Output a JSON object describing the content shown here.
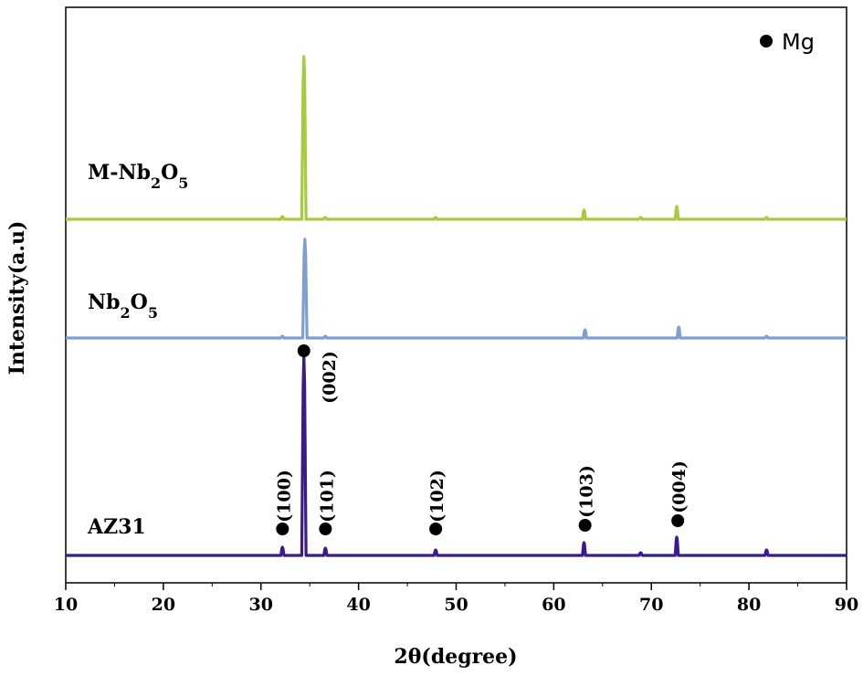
{
  "chart_data": {
    "type": "line",
    "xlabel": "2θ(degree)",
    "ylabel": "Intensity(a.u)",
    "xlim": [
      10,
      90
    ],
    "x_ticks": [
      "10",
      "20",
      "30",
      "40",
      "50",
      "60",
      "70",
      "80",
      "90"
    ],
    "legend": {
      "label": "Mg",
      "marker": "filled-circle",
      "position": "top-right"
    },
    "series": [
      {
        "name": "AZ31",
        "label_parts": [
          {
            "t": "AZ31",
            "sub": false
          }
        ],
        "color": "#3a1a8c",
        "offset": 0,
        "peaks": [
          {
            "x": 32.2,
            "h": 9
          },
          {
            "x": 34.4,
            "h": 218
          },
          {
            "x": 36.6,
            "h": 8
          },
          {
            "x": 47.9,
            "h": 6
          },
          {
            "x": 63.1,
            "h": 14
          },
          {
            "x": 68.9,
            "h": 3
          },
          {
            "x": 72.6,
            "h": 20
          },
          {
            "x": 81.8,
            "h": 6
          }
        ]
      },
      {
        "name": "Nb2O5",
        "label_parts": [
          {
            "t": "Nb",
            "sub": false
          },
          {
            "t": "2",
            "sub": true
          },
          {
            "t": "O",
            "sub": false
          },
          {
            "t": "5",
            "sub": true
          }
        ],
        "color": "#7f9fcf",
        "offset": 238,
        "peaks": [
          {
            "x": 32.2,
            "h": 2
          },
          {
            "x": 34.5,
            "h": 108
          },
          {
            "x": 36.6,
            "h": 2
          },
          {
            "x": 63.2,
            "h": 9
          },
          {
            "x": 72.8,
            "h": 12
          },
          {
            "x": 81.8,
            "h": 2
          }
        ]
      },
      {
        "name": "M-Nb2O5",
        "label_parts": [
          {
            "t": "M-Nb",
            "sub": false
          },
          {
            "t": "2",
            "sub": true
          },
          {
            "t": "O",
            "sub": false
          },
          {
            "t": "5",
            "sub": true
          }
        ],
        "color": "#a4cc3c",
        "offset": 368,
        "peaks": [
          {
            "x": 32.2,
            "h": 3
          },
          {
            "x": 34.4,
            "h": 178
          },
          {
            "x": 36.6,
            "h": 2
          },
          {
            "x": 47.9,
            "h": 2
          },
          {
            "x": 63.1,
            "h": 10
          },
          {
            "x": 68.9,
            "h": 2
          },
          {
            "x": 72.6,
            "h": 14
          },
          {
            "x": 81.8,
            "h": 2
          }
        ]
      }
    ],
    "annotations": [
      {
        "text": "(100)",
        "x": 32.3,
        "h": 29,
        "label_h": 65,
        "rotate": true
      },
      {
        "text": "(002)",
        "x": 34.4,
        "h": 224,
        "label_h": 205,
        "rotate": true
      },
      {
        "text": "(101)",
        "x": 36.7,
        "h": 29,
        "label_h": 65,
        "rotate": true
      },
      {
        "text": "(102)",
        "x": 48.0,
        "h": 29,
        "label_h": 65,
        "rotate": true
      },
      {
        "text": "(103)",
        "x": 63.3,
        "h": 33,
        "label_h": 70,
        "rotate": true
      },
      {
        "text": "(004)",
        "x": 72.8,
        "h": 38,
        "label_h": 75,
        "rotate": true
      }
    ]
  }
}
